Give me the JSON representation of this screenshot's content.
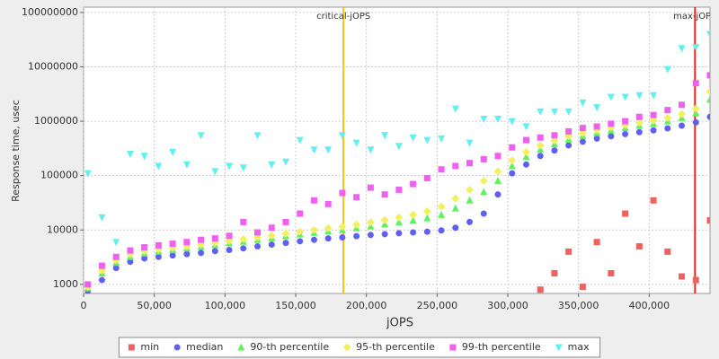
{
  "chart_data": {
    "type": "scatter",
    "x_label": "jOPS",
    "y_label": "Response time, usec",
    "yscale": "log",
    "grid": true,
    "xlim": [
      0,
      443000
    ],
    "ylim": [
      680,
      125000000
    ],
    "xticks": [
      0,
      {
        "value": 50000,
        "label": "50,000"
      },
      {
        "value": 100000,
        "label": "100,000"
      },
      {
        "value": 150000,
        "label": "150,000"
      },
      {
        "value": 200000,
        "label": "200,000"
      },
      {
        "value": 250000,
        "label": "250,000"
      },
      {
        "value": 300000,
        "label": "300,000"
      },
      {
        "value": 350000,
        "label": "350,000"
      },
      {
        "value": 400000,
        "label": "400,000"
      }
    ],
    "yticks": [
      1000,
      10000,
      100000,
      1000000,
      10000000,
      100000000
    ],
    "reference_lines": [
      {
        "label": "critical-jOPS",
        "x": 183800,
        "color": "#f0c020"
      },
      {
        "label": "max-jOPS",
        "x": 432400,
        "color": "#f02020"
      }
    ],
    "x": [
      3000,
      13000,
      23000,
      33000,
      43000,
      53000,
      63000,
      73000,
      83000,
      93000,
      103000,
      113000,
      123000,
      133000,
      143000,
      153000,
      163000,
      173000,
      183000,
      193000,
      203000,
      213000,
      223000,
      233000,
      243000,
      253000,
      263000,
      273000,
      283000,
      293000,
      303000,
      313000,
      323000,
      333000,
      343000,
      353000,
      363000,
      373000,
      383000,
      393000,
      403000,
      413000,
      423000,
      433000,
      443000
    ],
    "series": [
      {
        "name": "min",
        "color": "#f06060",
        "marker": "square",
        "values": [
          null,
          null,
          null,
          null,
          null,
          null,
          null,
          null,
          null,
          null,
          null,
          null,
          null,
          null,
          null,
          null,
          null,
          null,
          null,
          null,
          null,
          null,
          null,
          null,
          null,
          null,
          null,
          null,
          null,
          null,
          null,
          null,
          800,
          1600,
          4000,
          900,
          6000,
          1600,
          20000,
          5000,
          35000,
          4000,
          1400,
          1200,
          15000
        ]
      },
      {
        "name": "median",
        "color": "#6060f0",
        "marker": "circle",
        "values": [
          750,
          1200,
          2000,
          2600,
          3000,
          3200,
          3400,
          3600,
          3800,
          4100,
          4300,
          4600,
          5000,
          5400,
          5800,
          6200,
          6600,
          7000,
          7300,
          7700,
          8100,
          8400,
          8700,
          9000,
          9300,
          9800,
          11000,
          14000,
          20000,
          45000,
          110000,
          160000,
          230000,
          290000,
          360000,
          420000,
          480000,
          530000,
          580000,
          630000,
          680000,
          740000,
          830000,
          950000,
          1200000
        ]
      },
      {
        "name": "90-th percentile",
        "color": "#60f060",
        "marker": "triangle-up",
        "values": [
          850,
          1600,
          2500,
          3200,
          3700,
          4000,
          4300,
          4600,
          4900,
          5300,
          5700,
          6100,
          6600,
          7100,
          7700,
          8300,
          8900,
          9500,
          10000,
          10800,
          11700,
          12700,
          13800,
          15000,
          16500,
          19000,
          25000,
          35000,
          50000,
          80000,
          150000,
          220000,
          300000,
          380000,
          460000,
          540000,
          610000,
          680000,
          750000,
          830000,
          900000,
          1000000,
          1150000,
          1400000,
          2500000
        ]
      },
      {
        "name": "95-th percentile",
        "color": "#f0f060",
        "marker": "diamond",
        "values": [
          900,
          1800,
          2800,
          3600,
          4100,
          4400,
          4700,
          5000,
          5400,
          5800,
          6300,
          6800,
          7300,
          7900,
          8600,
          9300,
          10000,
          10800,
          11500,
          12500,
          13800,
          15200,
          17000,
          19000,
          22000,
          27000,
          38000,
          55000,
          80000,
          120000,
          190000,
          270000,
          360000,
          440000,
          530000,
          610000,
          690000,
          770000,
          850000,
          940000,
          1030000,
          1150000,
          1350000,
          1700000,
          3500000
        ]
      },
      {
        "name": "99-th percentile",
        "color": "#f060f0",
        "marker": "square",
        "values": [
          1000,
          2200,
          3200,
          4200,
          4800,
          5200,
          5600,
          6000,
          6600,
          7000,
          7800,
          14000,
          9000,
          11000,
          14000,
          20000,
          35000,
          30000,
          48000,
          40000,
          60000,
          45000,
          55000,
          70000,
          90000,
          130000,
          150000,
          170000,
          200000,
          230000,
          330000,
          450000,
          500000,
          550000,
          650000,
          750000,
          800000,
          900000,
          1000000,
          1200000,
          1300000,
          1600000,
          2000000,
          5000000,
          7000000
        ]
      },
      {
        "name": "max",
        "color": "#60f0f0",
        "marker": "triangle-down",
        "values": [
          110000,
          17000,
          6000,
          250000,
          230000,
          150000,
          270000,
          160000,
          550000,
          120000,
          150000,
          140000,
          550000,
          160000,
          180000,
          450000,
          300000,
          300000,
          550000,
          400000,
          300000,
          550000,
          350000,
          500000,
          450000,
          480000,
          1700000,
          400000,
          1100000,
          1100000,
          1000000,
          800000,
          1500000,
          1500000,
          1500000,
          2200000,
          1800000,
          2800000,
          2800000,
          3000000,
          3000000,
          9000000,
          22000000,
          23000000,
          40000000
        ]
      }
    ]
  }
}
